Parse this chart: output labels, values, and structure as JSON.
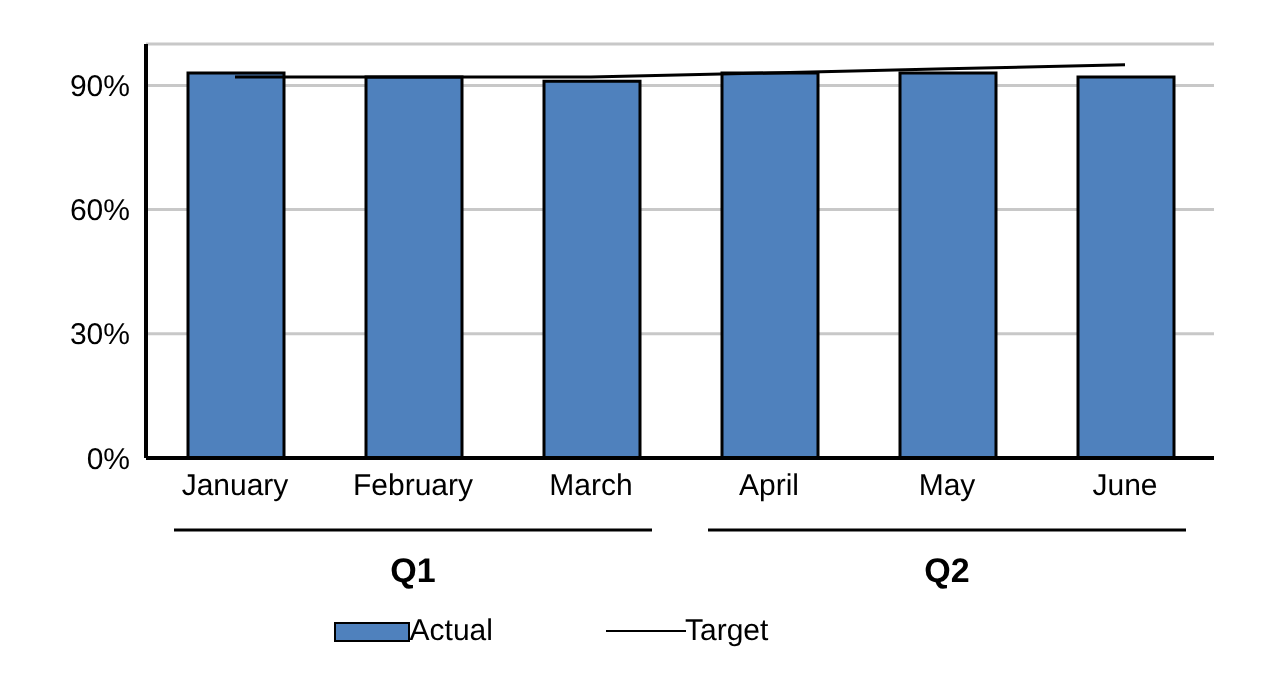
{
  "chart_data": {
    "type": "bar",
    "categories": [
      "January",
      "February",
      "March",
      "April",
      "May",
      "June"
    ],
    "series": [
      {
        "name": "Actual",
        "color": "#4f81bd",
        "values": [
          93,
          92,
          91,
          93,
          93,
          92
        ]
      },
      {
        "name": "Target",
        "type": "line",
        "color": "#000000",
        "values": [
          92,
          92,
          92,
          93,
          94,
          95
        ]
      }
    ],
    "ylim": [
      0,
      100
    ],
    "yticks": [
      {
        "value": 0,
        "label": "0%"
      },
      {
        "value": 30,
        "label": "30%"
      },
      {
        "value": 60,
        "label": "60%"
      },
      {
        "value": 90,
        "label": "90%"
      }
    ],
    "grid": "y",
    "legend": "bottom",
    "marker": "none",
    "annotations": [
      "Q1",
      "Q2"
    ]
  }
}
